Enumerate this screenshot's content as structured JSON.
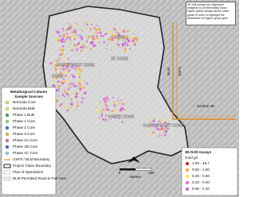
{
  "note": "3D drill assays are displayed weighted to preferentially show higher grade assays above lower grade in order to highlight the distribution of higher grade gold.",
  "zones": [
    "ZONE",
    "NORTHWEST ZONE",
    "SF ZONE",
    "ZONE",
    "SOUTH ZONE",
    "RANGEFRONT ZONE"
  ],
  "boundary_labels": {
    "usfs": "USFS",
    "blm": "BLM",
    "section": "Section 36"
  },
  "legend": {
    "title": [
      "Metallurgical Column",
      "Sample Sources"
    ],
    "items": [
      "Noronda Core",
      "Noronda Bulk",
      "Phase 1 Bulk",
      "Phase 1 Core",
      "Phase 2 Core",
      "Phase 3 Core",
      "Phase 4A Core",
      "Phase 4B Core",
      "Phase 4C Core",
      "USFS / BLM Boundary",
      "Project Claim Boundary",
      "Plan of Operations",
      "BLM Permitted Road & Pad Area"
    ]
  },
  "assay_legend": {
    "title": "3D Drill Assays",
    "subtitle": "Gold g/t",
    "items": [
      "1.00 - 46.7",
      "0.50 - 1.00",
      "0.20 - 0.50",
      "0.10 - 0.20",
      "0.00 - 0.10"
    ]
  },
  "scale_bar": {
    "labels": [
      "0",
      "500"
    ],
    "unit": "Meters"
  }
}
